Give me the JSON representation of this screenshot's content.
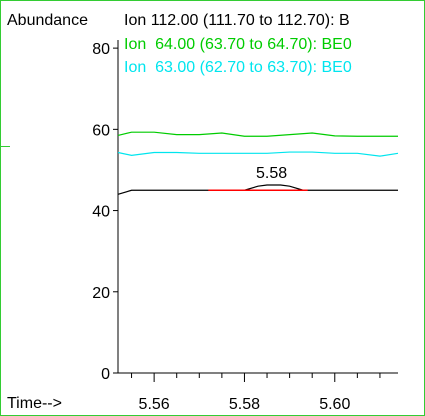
{
  "chart_data": {
    "type": "line",
    "ylabel": "Abundance",
    "xlabel": "Time-->",
    "xlim": [
      5.552,
      5.614
    ],
    "ylim": [
      0,
      82
    ],
    "x_ticks": [
      5.56,
      5.58,
      5.6
    ],
    "x_tick_labels": [
      "5.56",
      "5.58",
      "5.60"
    ],
    "y_ticks": [
      0,
      20,
      40,
      60,
      80
    ],
    "y_tick_labels": [
      "0",
      "20",
      "40",
      "60",
      "80"
    ],
    "grid": false,
    "legend_placement": "top",
    "series": [
      {
        "name": "Ion 112.00 (111.70 to 112.70): B",
        "color": "#000000",
        "x": [
          5.552,
          5.555,
          5.56,
          5.565,
          5.57,
          5.575,
          5.58,
          5.583,
          5.585,
          5.588,
          5.59,
          5.593,
          5.595,
          5.6,
          5.605,
          5.61,
          5.614
        ],
        "y": [
          44,
          45,
          45,
          45,
          45,
          45,
          45,
          46,
          46.3,
          46.3,
          46,
          45,
          45,
          45,
          45,
          45,
          45
        ]
      },
      {
        "name": "Ion  64.00 (63.70 to 64.70): BE0",
        "color": "#00cc00",
        "x": [
          5.552,
          5.555,
          5.56,
          5.565,
          5.57,
          5.575,
          5.58,
          5.585,
          5.59,
          5.595,
          5.6,
          5.605,
          5.61,
          5.614
        ],
        "y": [
          58.5,
          59.3,
          59.3,
          58.7,
          58.7,
          59.1,
          58.3,
          58.3,
          58.7,
          59.1,
          58.4,
          58.3,
          58.3,
          58.3
        ]
      },
      {
        "name": "Ion  63.00 (62.70 to 63.70): BE0",
        "color": "#00e5ee",
        "x": [
          5.552,
          5.555,
          5.56,
          5.565,
          5.57,
          5.575,
          5.58,
          5.585,
          5.59,
          5.595,
          5.6,
          5.605,
          5.61,
          5.614
        ],
        "y": [
          54.3,
          53.6,
          54.3,
          54.3,
          54.1,
          54.1,
          54.1,
          54.1,
          54.4,
          54.4,
          54.1,
          54.1,
          53.4,
          54.1
        ]
      }
    ],
    "integration_baseline": {
      "color": "#ff0000",
      "x": [
        5.572,
        5.594
      ],
      "y": [
        45,
        45
      ]
    },
    "annotations": [
      {
        "text": "5.58",
        "x": 5.586,
        "y": 47.5
      }
    ]
  }
}
